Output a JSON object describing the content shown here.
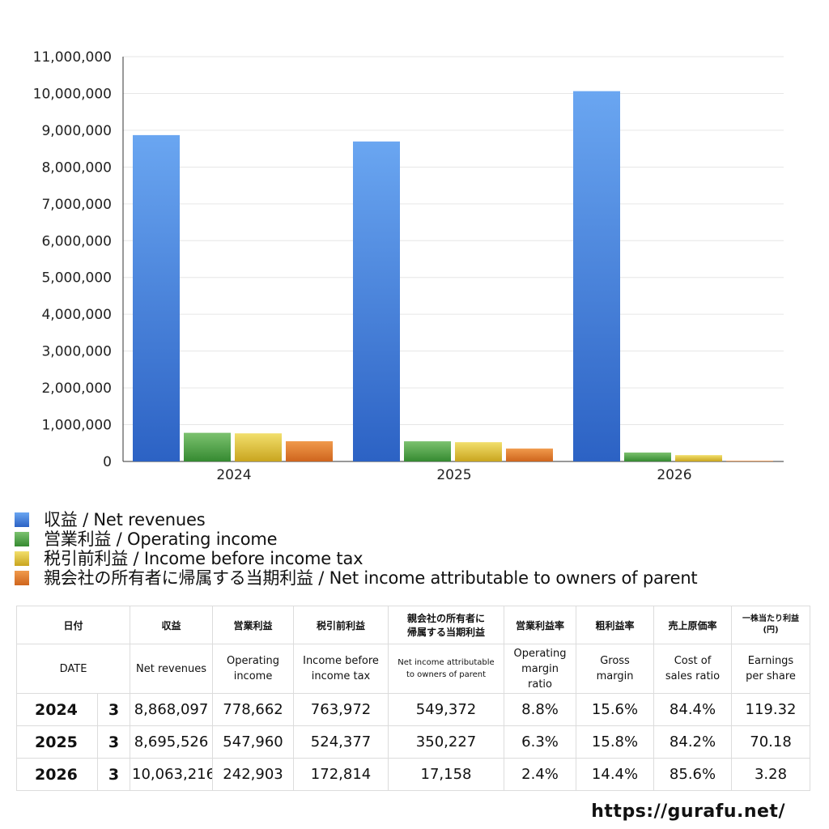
{
  "chart_data": {
    "type": "bar",
    "categories": [
      "2024",
      "2025",
      "2026"
    ],
    "ylim": [
      0,
      11000000
    ],
    "yticks": [
      0,
      1000000,
      2000000,
      3000000,
      4000000,
      5000000,
      6000000,
      7000000,
      8000000,
      9000000,
      10000000,
      11000000
    ],
    "ytick_labels": [
      "0",
      "1,000,000",
      "2,000,000",
      "3,000,000",
      "4,000,000",
      "5,000,000",
      "6,000,000",
      "7,000,000",
      "8,000,000",
      "9,000,000",
      "10,000,000",
      "11,000,000"
    ],
    "grid": true,
    "legend_position": "bottom",
    "series": [
      {
        "name": "収益 / Net revenues",
        "values": [
          8868097,
          8695526,
          10063216
        ],
        "color": "#3f7fdc"
      },
      {
        "name": "営業利益 / Operating income",
        "values": [
          778662,
          547960,
          242903
        ],
        "color": "#4ea445"
      },
      {
        "name": "税引前利益 / Income before income tax",
        "values": [
          763972,
          524377,
          172814
        ],
        "color": "#e2c43a"
      },
      {
        "name": "親会社の所有者に帰属する当期利益 / Net income attributable to owners of parent",
        "values": [
          549372,
          350227,
          17158
        ],
        "color": "#e07b2b"
      }
    ]
  },
  "table": {
    "header_jp": {
      "date": "日付",
      "revenue": "収益",
      "operating": "営業利益",
      "pretax": "税引前利益",
      "net_line1": "親会社の所有者に",
      "net_line2": "帰属する当期利益",
      "op_margin": "営業利益率",
      "gross": "粗利益率",
      "cost": "売上原価率",
      "eps_line1": "一株当たり利益",
      "eps_line2": "(円)"
    },
    "header_en": {
      "date": "DATE",
      "revenue": "Net revenues",
      "operating_line1": "Operating",
      "operating_line2": "income",
      "pretax_line1": "Income before",
      "pretax_line2": "income tax",
      "net_line1": "Net income attributable",
      "net_line2": "to owners of parent",
      "op_margin_line1": "Operating",
      "op_margin_line2": "margin",
      "op_margin_line3": "ratio",
      "gross_line1": "Gross",
      "gross_line2": "margin",
      "cost_line1": "Cost of",
      "cost_line2": "sales ratio",
      "eps_line1": "Earnings",
      "eps_line2": "per share"
    },
    "rows": [
      {
        "year": "2024",
        "month": "3",
        "revenue": "8,868,097",
        "operating": "778,662",
        "pretax": "763,972",
        "net": "549,372",
        "op_margin": "8.8%",
        "gross": "15.6%",
        "cost": "84.4%",
        "eps": "119.32"
      },
      {
        "year": "2025",
        "month": "3",
        "revenue": "8,695,526",
        "operating": "547,960",
        "pretax": "524,377",
        "net": "350,227",
        "op_margin": "6.3%",
        "gross": "15.8%",
        "cost": "84.2%",
        "eps": "70.18"
      },
      {
        "year": "2026",
        "month": "3",
        "revenue": "10,063,216",
        "operating": "242,903",
        "pretax": "172,814",
        "net": "17,158",
        "op_margin": "2.4%",
        "gross": "14.4%",
        "cost": "85.6%",
        "eps": "3.28"
      }
    ]
  },
  "footer": {
    "url": "https://gurafu.net/"
  }
}
